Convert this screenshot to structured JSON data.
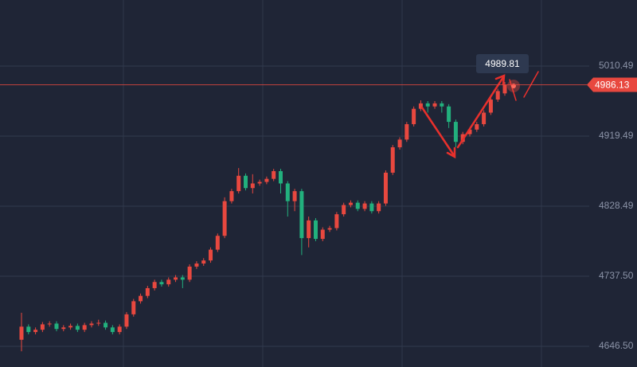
{
  "chart_data": {
    "type": "candlestick",
    "ylim": [
      4619.6,
      5096.3
    ],
    "yticks": [
      5010.49,
      4919.49,
      4828.49,
      {
        "value": 4737.5,
        "label": "4737.50"
      },
      {
        "value": 4646.5,
        "label": "4646.50"
      }
    ],
    "grid": true,
    "up_color": "#e8483f",
    "down_color": "#22b07d",
    "last_price": 4986.13,
    "tooltip_value": 4989.81,
    "open": [
      4655,
      4672,
      4665,
      4668,
      4675,
      4676,
      4669,
      4671,
      4673,
      4668,
      4674,
      4676,
      4677,
      4671,
      4665,
      4672,
      4688,
      4705,
      4712,
      4722,
      4730,
      4727,
      4733,
      4736,
      4733,
      4750,
      4754,
      4758,
      4772,
      4790,
      4835,
      4848,
      4868,
      4852,
      4858,
      4860,
      4864,
      4874,
      4858,
      4835,
      4848,
      4787,
      4810,
      4786,
      4798,
      4800,
      4818,
      4830,
      4833,
      4825,
      4832,
      4822,
      4832,
      4872,
      4905,
      4915,
      4935,
      4955,
      4962,
      4958,
      4962,
      4958,
      4938,
      4912,
      4922,
      4928,
      4935,
      4950,
      4967,
      4975
    ],
    "high": [
      4690,
      4675,
      4671,
      4678,
      4679,
      4679,
      4674,
      4676,
      4676,
      4677,
      4679,
      4681,
      4680,
      4674,
      4675,
      4691,
      4708,
      4715,
      4725,
      4733,
      4733,
      4736,
      4739,
      4739,
      4753,
      4757,
      4761,
      4775,
      4793,
      4840,
      4851,
      4878,
      4871,
      4870,
      4863,
      4867,
      4877,
      4877,
      4861,
      4851,
      4851,
      4815,
      4813,
      4801,
      4803,
      4821,
      4833,
      4836,
      4836,
      4835,
      4835,
      4835,
      4875,
      4908,
      4918,
      4938,
      4958,
      4966,
      4965,
      4965,
      4965,
      4961,
      4941,
      4925,
      4931,
      4938,
      4953,
      4970,
      4981,
      4989.81
    ],
    "low": [
      4640,
      4662,
      4662,
      4665,
      4672,
      4666,
      4666,
      4668,
      4665,
      4665,
      4671,
      4673,
      4668,
      4662,
      4662,
      4669,
      4685,
      4702,
      4709,
      4719,
      4724,
      4724,
      4730,
      4722,
      4730,
      4747,
      4751,
      4755,
      4769,
      4787,
      4832,
      4845,
      4849,
      4845,
      4855,
      4857,
      4861,
      4845,
      4815,
      4822,
      4765,
      4775,
      4783,
      4783,
      4795,
      4797,
      4815,
      4827,
      4822,
      4822,
      4819,
      4819,
      4829,
      4869,
      4902,
      4912,
      4932,
      4952,
      4950,
      4955,
      4950,
      4930,
      4905,
      4909,
      4919,
      4925,
      4932,
      4947,
      4964,
      4972
    ],
    "close": [
      4672,
      4665,
      4668,
      4675,
      4676,
      4669,
      4671,
      4673,
      4668,
      4674,
      4676,
      4677,
      4671,
      4665,
      4672,
      4688,
      4705,
      4712,
      4722,
      4730,
      4727,
      4733,
      4736,
      4733,
      4750,
      4754,
      4758,
      4772,
      4790,
      4835,
      4848,
      4868,
      4852,
      4858,
      4860,
      4864,
      4874,
      4858,
      4835,
      4848,
      4787,
      4810,
      4786,
      4798,
      4800,
      4818,
      4830,
      4833,
      4825,
      4832,
      4822,
      4832,
      4872,
      4905,
      4915,
      4935,
      4955,
      4962,
      4958,
      4962,
      4958,
      4938,
      4912,
      4922,
      4928,
      4935,
      4950,
      4967,
      4978,
      4986.13
    ]
  }
}
